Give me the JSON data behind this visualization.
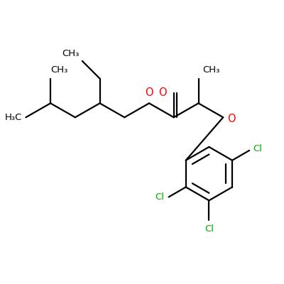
{
  "bg_color": "#ffffff",
  "bond_color": "#000000",
  "bond_lw": 1.6,
  "cl_color": "#00aa00",
  "o_color": "#ff0000",
  "figsize": [
    4.0,
    4.0
  ],
  "dpi": 100,
  "xlim": [
    0,
    4.0
  ],
  "ylim": [
    0,
    4.0
  ]
}
